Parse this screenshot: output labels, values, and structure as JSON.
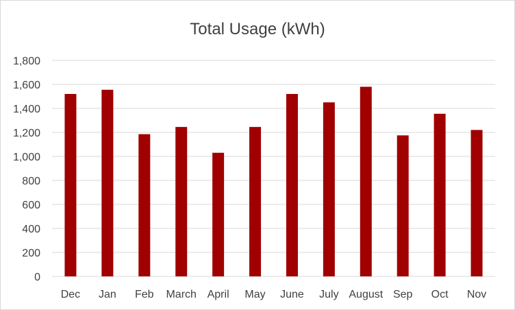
{
  "chart_data": {
    "type": "bar",
    "title": "Total Usage (kWh)",
    "xlabel": "",
    "ylabel": "",
    "categories": [
      "Dec",
      "Jan",
      "Feb",
      "March",
      "April",
      "May",
      "June",
      "July",
      "August",
      "Sep",
      "Oct",
      "Nov"
    ],
    "values": [
      1520,
      1555,
      1185,
      1245,
      1030,
      1245,
      1520,
      1450,
      1580,
      1175,
      1355,
      1220
    ],
    "ylim": [
      0,
      1800
    ],
    "yticks": [
      0,
      200,
      400,
      600,
      800,
      1000,
      1200,
      1400,
      1600,
      1800
    ],
    "ytick_labels": [
      "0",
      "200",
      "400",
      "600",
      "800",
      "1,000",
      "1,200",
      "1,400",
      "1,600",
      "1,800"
    ],
    "grid": true,
    "legend": "none",
    "bar_color": "#a00000",
    "grid_color": "#d9d9d9"
  }
}
